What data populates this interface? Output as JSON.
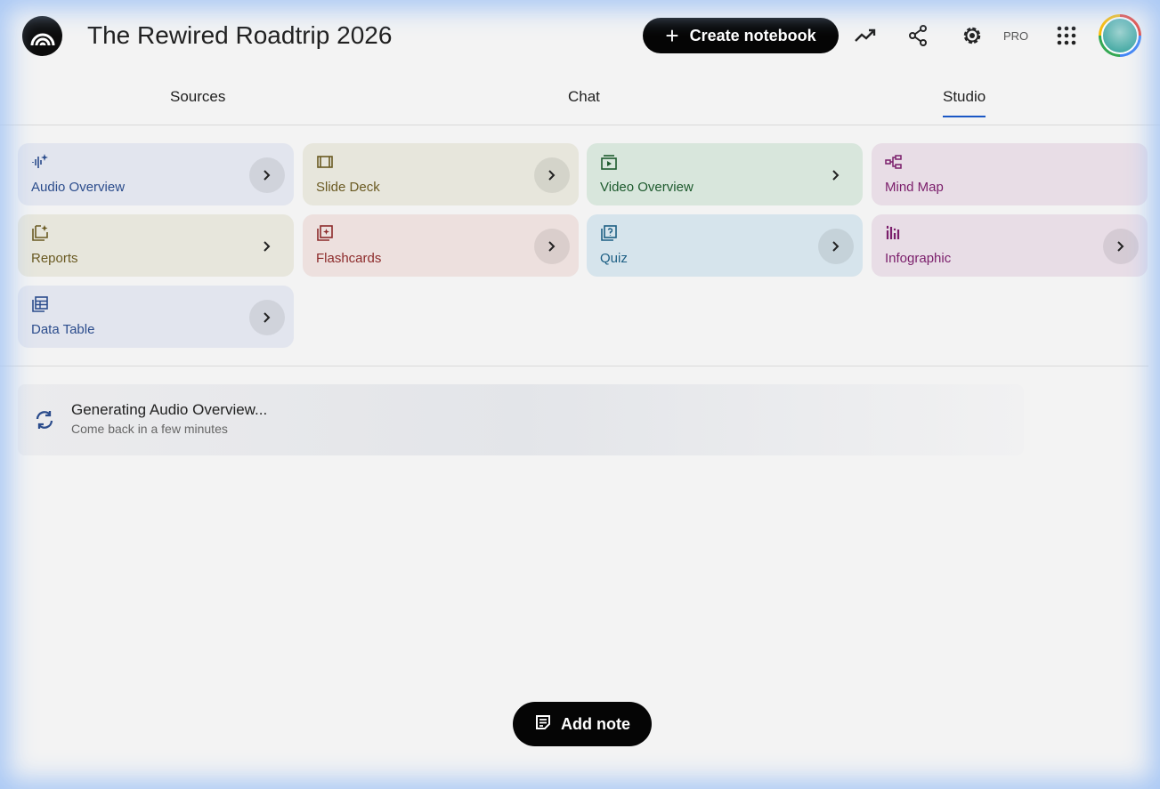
{
  "header": {
    "title": "The Rewired Roadtrip 2026",
    "create_label": "Create notebook",
    "pro_label": "PRO"
  },
  "tabs": [
    {
      "label": "Sources"
    },
    {
      "label": "Chat"
    },
    {
      "label": "Studio",
      "active": true
    }
  ],
  "studio": {
    "cards": [
      {
        "label": "Audio Overview",
        "icon": "audio-sparkle-icon",
        "bg": "#e2e5ee",
        "fg": "#2b4c8c"
      },
      {
        "label": "Slide Deck",
        "icon": "slides-icon",
        "bg": "#e7e6dc",
        "fg": "#6a5a22"
      },
      {
        "label": "Video Overview",
        "icon": "video-icon",
        "bg": "#d8e6dc",
        "fg": "#1d5a2d"
      },
      {
        "label": "Mind Map",
        "icon": "mind-map-icon",
        "bg": "#e8dde6",
        "fg": "#7b1e6b"
      },
      {
        "label": "Reports",
        "icon": "reports-icon",
        "bg": "#e7e6dc",
        "fg": "#6a5a22"
      },
      {
        "label": "Flashcards",
        "icon": "flashcards-icon",
        "bg": "#ede0de",
        "fg": "#8c2a2a"
      },
      {
        "label": "Quiz",
        "icon": "quiz-icon",
        "bg": "#d6e4ec",
        "fg": "#1d5f84"
      },
      {
        "label": "Infographic",
        "icon": "infographic-icon",
        "bg": "#e8dde6",
        "fg": "#7b1e6b"
      },
      {
        "label": "Data Table",
        "icon": "data-table-icon",
        "bg": "#e2e5ee",
        "fg": "#2b4c8c"
      }
    ]
  },
  "generating": {
    "title": "Generating Audio Overview...",
    "subtitle": "Come back in a few minutes"
  },
  "add_note_label": "Add note"
}
